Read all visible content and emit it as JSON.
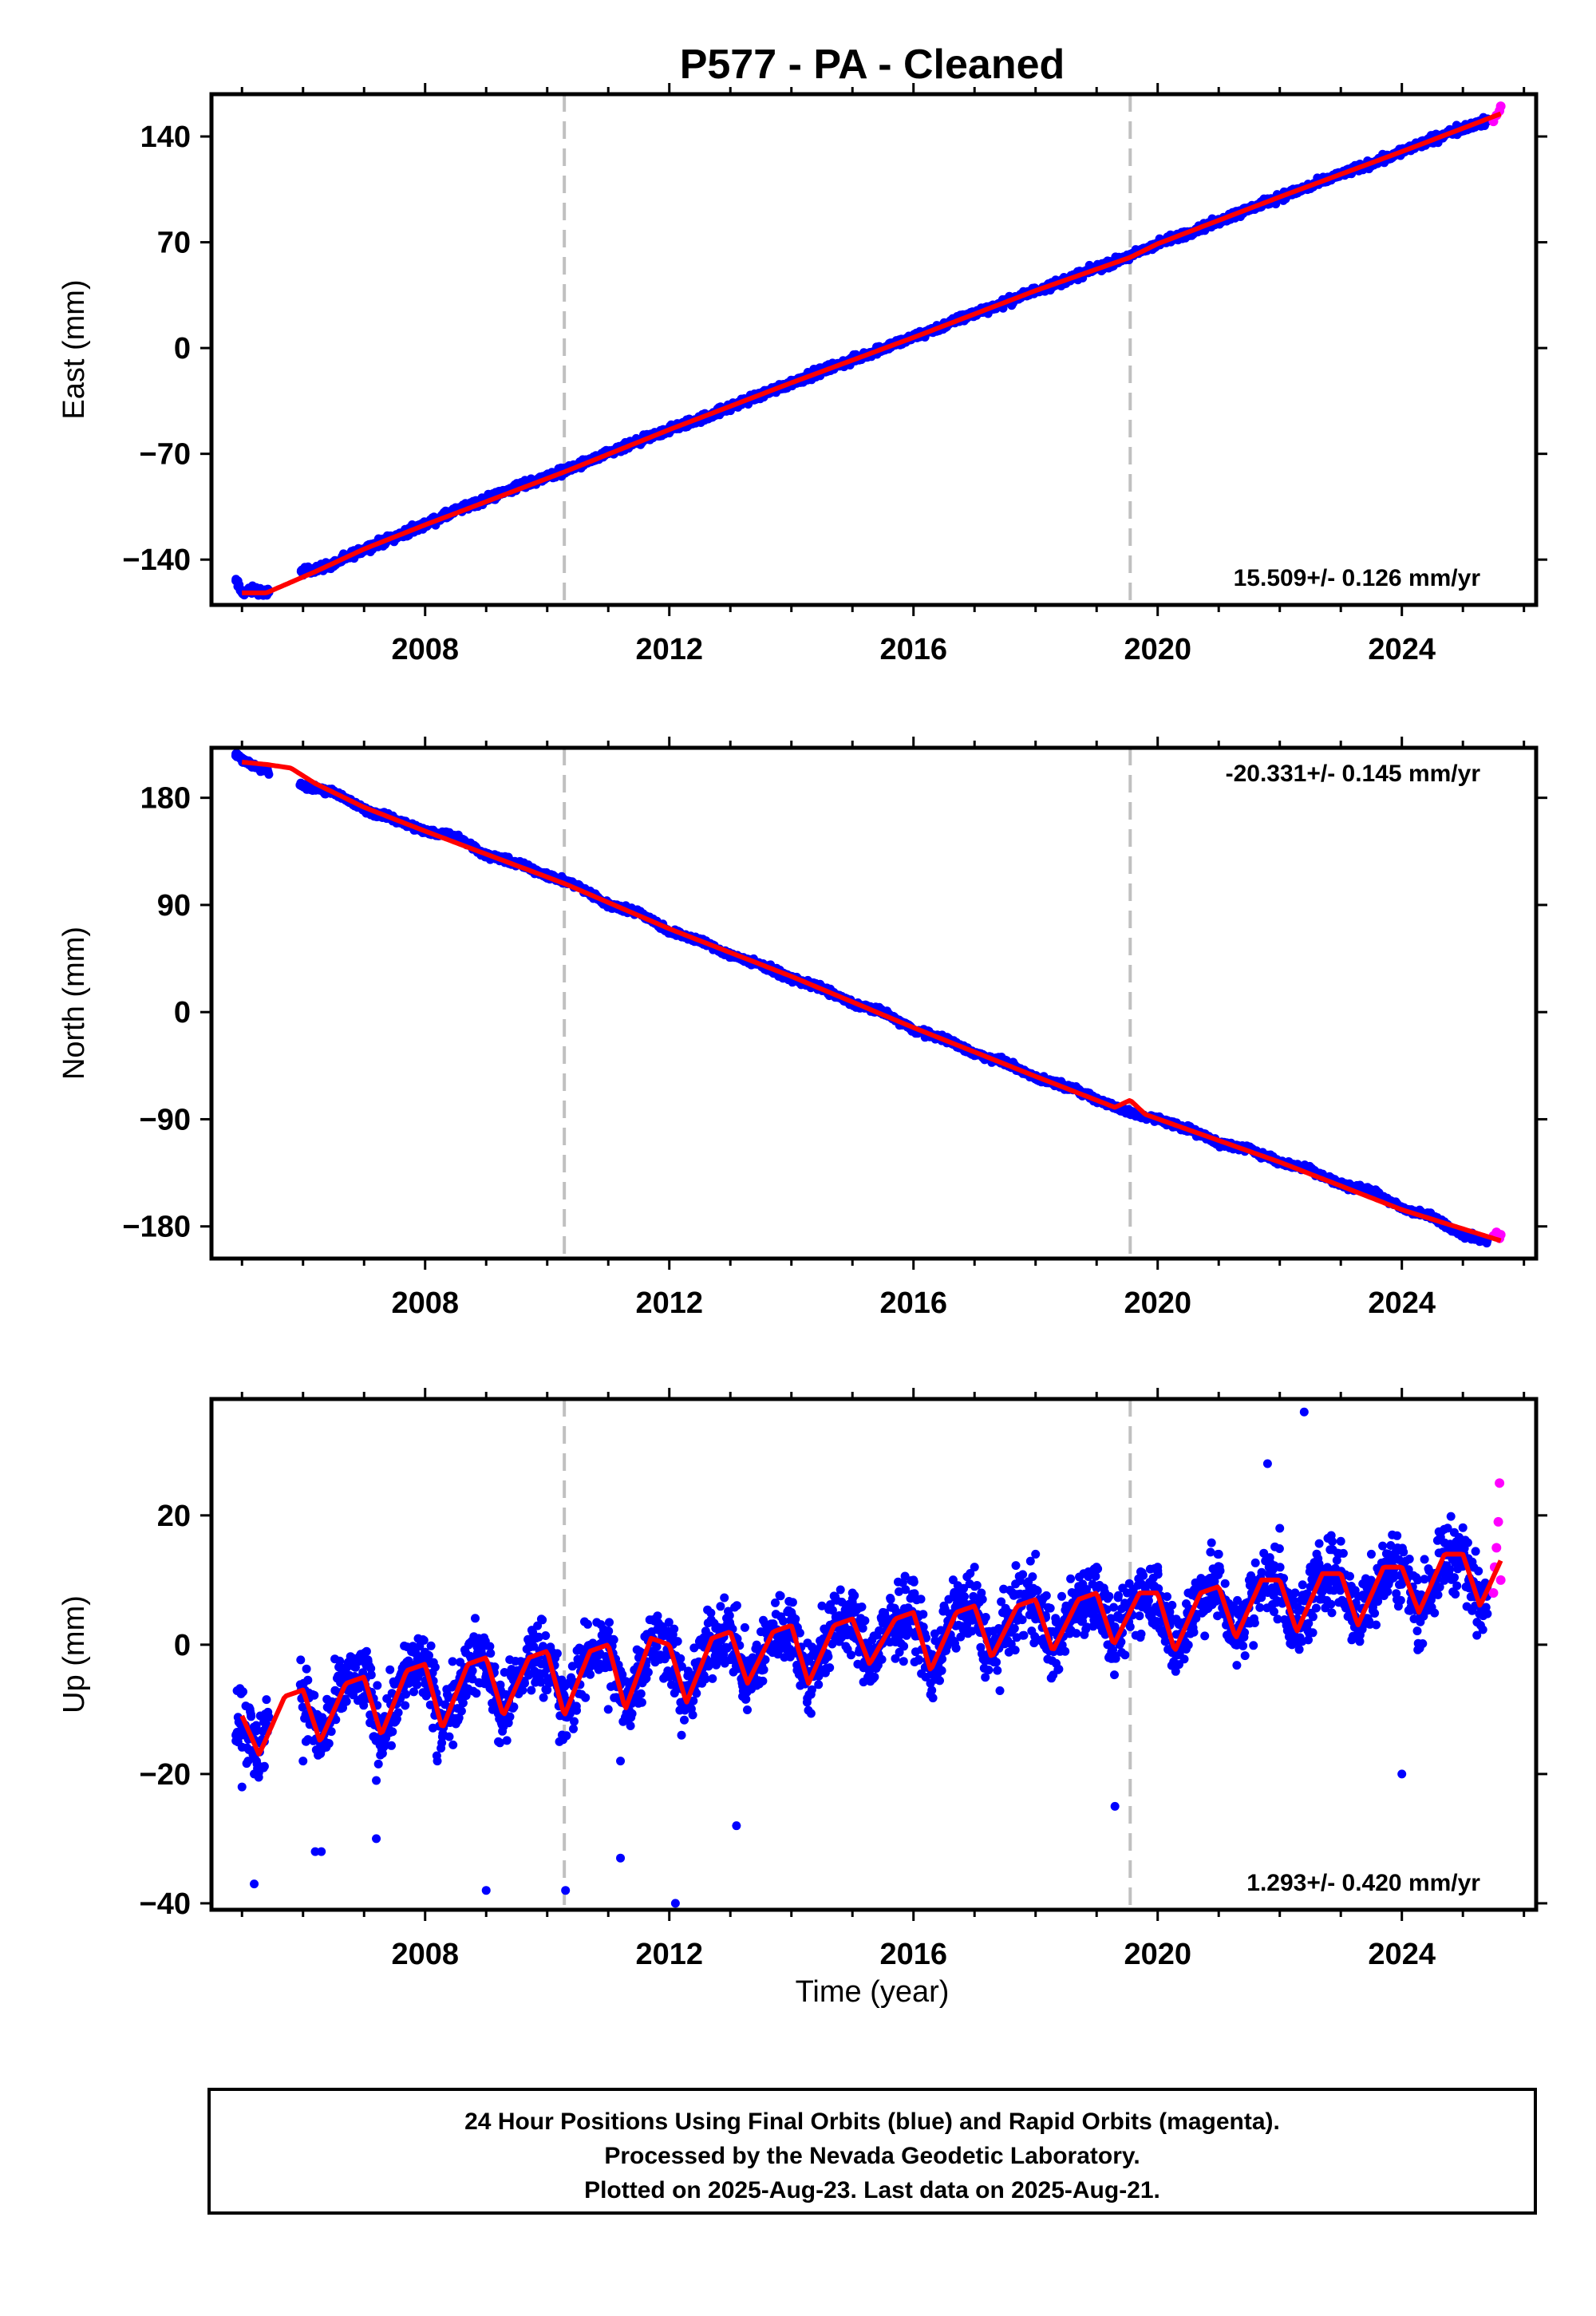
{
  "title": "P577  - PA - Cleaned",
  "colors": {
    "final_orbits": "#0000ff",
    "rapid_orbits": "#ff00ff",
    "model": "#ff0000",
    "event_line": "#c0c0c0"
  },
  "x_tick_labels": [
    "2008",
    "2012",
    "2016",
    "2020",
    "2024"
  ],
  "xlabel": "Time (year)",
  "footer": {
    "line1": "24 Hour Positions Using Final Orbits (blue) and Rapid Orbits (magenta).",
    "line2": "Processed by the Nevada Geodetic Laboratory.",
    "line3": "Plotted on 2025-Aug-23. Last data on 2025-Aug-21."
  },
  "chart_data": [
    {
      "type": "scatter",
      "ylabel": "East (mm)",
      "xlim": [
        2004.5,
        2026.2
      ],
      "ylim": [
        -170,
        168
      ],
      "yticks": [
        -140,
        -70,
        0,
        70,
        140
      ],
      "ytick_labels": [
        "−140",
        "−70",
        "0",
        "70",
        "140"
      ],
      "xticks": [
        2008,
        2012,
        2016,
        2020,
        2024
      ],
      "event_lines_x": [
        2010.28,
        2019.55
      ],
      "rate_text": "15.509+/- 0.126 mm/yr",
      "rate_position": "bottom-right",
      "final_orbits": {
        "x": [
          2004.9,
          2005.0,
          2005.2,
          2005.4,
          2006.0,
          2006.5,
          2007.0,
          2007.5,
          2008.0,
          2008.5,
          2009.0,
          2009.5,
          2010.0,
          2010.5,
          2011.0,
          2011.5,
          2012.0,
          2012.5,
          2013.0,
          2013.5,
          2014.0,
          2014.5,
          2015.0,
          2015.5,
          2016.0,
          2016.5,
          2017.0,
          2017.5,
          2018.0,
          2018.5,
          2019.0,
          2019.5,
          2020.0,
          2020.5,
          2021.0,
          2021.5,
          2022.0,
          2022.5,
          2023.0,
          2023.5,
          2024.0,
          2024.5,
          2025.0,
          2025.4
        ],
        "y": [
          -154,
          -162,
          -160,
          -162,
          -148,
          -143,
          -133,
          -125,
          -117,
          -108,
          -100,
          -92,
          -85,
          -78,
          -70,
          -62,
          -54,
          -47,
          -39,
          -31,
          -23,
          -15,
          -8,
          0,
          7,
          15,
          23,
          30,
          38,
          45,
          53,
          60,
          69,
          76,
          84,
          92,
          100,
          107,
          115,
          122,
          130,
          138,
          146,
          150
        ]
      },
      "rapid_orbits": {
        "x": [
          2025.5,
          2025.55,
          2025.6,
          2025.62
        ],
        "y": [
          150,
          154,
          157,
          160
        ]
      },
      "model": {
        "x": [
          2005.0,
          2005.4,
          2005.8,
          2006.2,
          2007.0,
          2008.0,
          2010.28,
          2012.0,
          2014.0,
          2016.0,
          2018.0,
          2019.55,
          2020.0,
          2022.0,
          2024.0,
          2025.62
        ],
        "y": [
          -162,
          -162,
          -155,
          -148,
          -133,
          -117,
          -82,
          -54,
          -23,
          7,
          38,
          60,
          69,
          100,
          130,
          155
        ]
      }
    },
    {
      "type": "scatter",
      "ylabel": "North (mm)",
      "xlim": [
        2004.5,
        2026.2
      ],
      "ylim": [
        -207,
        222
      ],
      "yticks": [
        -180,
        -90,
        0,
        90,
        180
      ],
      "ytick_labels": [
        "−180",
        "−90",
        "0",
        "90",
        "180"
      ],
      "xticks": [
        2008,
        2012,
        2016,
        2020,
        2024
      ],
      "event_lines_x": [
        2010.28,
        2019.55
      ],
      "rate_text": "-20.331+/- 0.145 mm/yr",
      "rate_position": "top-right",
      "final_orbits": {
        "x": [
          2004.9,
          2005.0,
          2005.2,
          2005.4,
          2006.0,
          2006.5,
          2007.0,
          2007.5,
          2008.0,
          2008.5,
          2009.0,
          2009.5,
          2010.0,
          2010.5,
          2011.0,
          2011.5,
          2012.0,
          2012.5,
          2013.0,
          2013.5,
          2014.0,
          2014.5,
          2015.0,
          2015.5,
          2016.0,
          2016.5,
          2017.0,
          2017.5,
          2018.0,
          2018.5,
          2019.0,
          2019.5,
          2020.0,
          2020.5,
          2021.0,
          2021.5,
          2022.0,
          2022.5,
          2023.0,
          2023.5,
          2024.0,
          2024.5,
          2025.0,
          2025.4
        ],
        "y": [
          217,
          212,
          207,
          203,
          190,
          185,
          170,
          162,
          152,
          148,
          132,
          125,
          115,
          106,
          90,
          84,
          68,
          60,
          48,
          40,
          28,
          20,
          7,
          0,
          -15,
          -22,
          -35,
          -42,
          -55,
          -62,
          -73,
          -84,
          -90,
          -98,
          -110,
          -115,
          -126,
          -132,
          -145,
          -150,
          -165,
          -172,
          -187,
          -192
        ]
      },
      "rapid_orbits": {
        "x": [
          2025.5,
          2025.55,
          2025.6,
          2025.62
        ],
        "y": [
          -188,
          -185,
          -190,
          -187
        ]
      },
      "model": {
        "x": [
          2005.0,
          2005.4,
          2005.8,
          2006.2,
          2007.0,
          2008.0,
          2010.28,
          2012.0,
          2014.0,
          2016.0,
          2018.0,
          2019.3,
          2019.55,
          2019.8,
          2022.0,
          2024.0,
          2025.62
        ],
        "y": [
          210,
          208,
          205,
          192,
          172,
          152,
          108,
          70,
          30,
          -13,
          -54,
          -80,
          -74,
          -86,
          -126,
          -166,
          -192
        ]
      }
    },
    {
      "type": "scatter",
      "ylabel": "Up (mm)",
      "xlabel": "Time (year)",
      "xlim": [
        2004.5,
        2026.2
      ],
      "ylim": [
        -41,
        38
      ],
      "yticks": [
        -40,
        -20,
        0,
        20
      ],
      "ytick_labels": [
        "−40",
        "−20",
        "0",
        "20"
      ],
      "xticks": [
        2008,
        2012,
        2016,
        2020,
        2024
      ],
      "event_lines_x": [
        2010.28,
        2019.55
      ],
      "rate_text": "1.293+/- 0.420 mm/yr",
      "rate_position": "bottom-right",
      "final_orbits": {
        "x": [
          2004.9,
          2005.0,
          2005.1,
          2005.2,
          2005.3,
          2006.0,
          2006.2,
          2006.5,
          2007.0,
          2007.2,
          2007.5,
          2008.0,
          2008.2,
          2008.5,
          2009.0,
          2009.2,
          2009.5,
          2010.0,
          2010.2,
          2010.5,
          2011.0,
          2011.2,
          2011.5,
          2012.0,
          2012.2,
          2012.5,
          2013.0,
          2013.2,
          2013.5,
          2014.0,
          2014.2,
          2014.5,
          2015.0,
          2015.2,
          2015.5,
          2016.0,
          2016.2,
          2016.5,
          2017.0,
          2017.2,
          2017.5,
          2018.0,
          2018.2,
          2018.5,
          2019.0,
          2019.2,
          2019.5,
          2020.0,
          2020.2,
          2020.5,
          2021.0,
          2021.2,
          2021.5,
          2022.0,
          2022.2,
          2022.5,
          2023.0,
          2023.2,
          2023.5,
          2024.0,
          2024.2,
          2024.5,
          2025.0,
          2025.2,
          2025.4
        ],
        "y": [
          -14,
          -22,
          -18,
          -20,
          -11,
          -18,
          -32,
          -10,
          -8,
          -21,
          -12,
          -6,
          -18,
          -8,
          -5,
          -15,
          -4,
          -7,
          -15,
          -3,
          -10,
          -18,
          -2,
          -5,
          -14,
          0,
          3,
          -8,
          2,
          5,
          -5,
          6,
          8,
          -3,
          5,
          10,
          -5,
          6,
          12,
          2,
          5,
          14,
          0,
          6,
          12,
          -2,
          8,
          12,
          3,
          8,
          14,
          2,
          10,
          18,
          0,
          12,
          16,
          5,
          14,
          12,
          4,
          10,
          15,
          6,
          9
        ],
        "outliers_x": [
          2005.2,
          2006.3,
          2007.2,
          2009.0,
          2010.3,
          2011.2,
          2012.1,
          2013.1,
          2019.3,
          2021.8,
          2022.4,
          2024.0
        ],
        "outliers_y": [
          -37,
          -32,
          -30,
          -38,
          -38,
          -33,
          -40,
          -28,
          -25,
          28,
          36,
          -20
        ]
      },
      "rapid_orbits": {
        "x": [
          2025.5,
          2025.52,
          2025.55,
          2025.58,
          2025.6,
          2025.62
        ],
        "y": [
          8,
          12,
          15,
          19,
          25,
          10
        ]
      },
      "model": {
        "x": [
          2005.0,
          2005.28,
          2005.7,
          2006.0,
          2006.28,
          2006.7,
          2007.0,
          2007.28,
          2007.7,
          2008.0,
          2008.28,
          2008.7,
          2009.0,
          2009.28,
          2009.7,
          2010.0,
          2010.28,
          2010.7,
          2011.0,
          2011.28,
          2011.7,
          2012.0,
          2012.28,
          2012.7,
          2013.0,
          2013.28,
          2013.7,
          2014.0,
          2014.28,
          2014.7,
          2015.0,
          2015.28,
          2015.7,
          2016.0,
          2016.28,
          2016.7,
          2017.0,
          2017.28,
          2017.7,
          2018.0,
          2018.28,
          2018.7,
          2019.0,
          2019.28,
          2019.7,
          2020.0,
          2020.28,
          2020.7,
          2021.0,
          2021.28,
          2021.7,
          2022.0,
          2022.28,
          2022.7,
          2023.0,
          2023.28,
          2023.7,
          2024.0,
          2024.28,
          2024.7,
          2025.0,
          2025.28,
          2025.62
        ],
        "y": [
          -11,
          -17,
          -8,
          -7,
          -15,
          -6,
          -5,
          -14,
          -4,
          -3,
          -13,
          -3,
          -2,
          -11,
          -2,
          -1,
          -11,
          -1,
          0,
          -10,
          1,
          0,
          -9,
          1,
          2,
          -6,
          2,
          3,
          -6,
          3,
          4,
          -3,
          4,
          5,
          -4,
          5,
          6,
          -2,
          6,
          7,
          -1,
          7,
          8,
          0,
          8,
          8,
          -1,
          8,
          9,
          1,
          10,
          10,
          2,
          11,
          11,
          3,
          12,
          12,
          5,
          14,
          14,
          6,
          13
        ]
      }
    }
  ]
}
